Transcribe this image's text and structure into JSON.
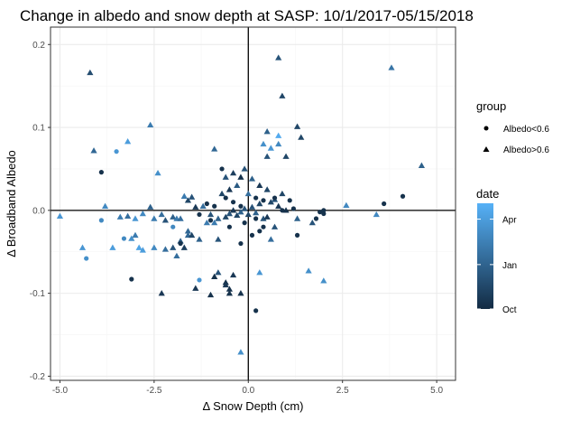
{
  "chart_data": {
    "type": "scatter",
    "title": "Change in albedo and snow depth at SASP: 10/1/2017-05/15/2018",
    "xlabel": "Δ Snow Depth (cm)",
    "ylabel": "Δ Broadband Albedo",
    "xlim": [
      -5.25,
      5.5
    ],
    "ylim": [
      -0.205,
      0.221
    ],
    "x_ticks": [
      -5.0,
      -2.5,
      0.0,
      2.5,
      5.0
    ],
    "x_tick_labels": [
      "-5.0",
      "-2.5",
      "0.0",
      "2.5",
      "5.0"
    ],
    "x_minor_ticks": [
      -3.75,
      -1.25,
      1.25,
      3.75
    ],
    "y_ticks": [
      -0.2,
      -0.1,
      0.0,
      0.1,
      0.2
    ],
    "y_tick_labels": [
      "-0.2",
      "-0.1",
      "0.0",
      "0.1",
      "0.2"
    ],
    "y_minor_ticks": [
      -0.15,
      -0.05,
      0.05,
      0.15
    ],
    "reference_lines": {
      "x": 0,
      "y": 0
    },
    "grid": true,
    "legend_placement": "right",
    "shape_legend": {
      "title": "group",
      "entries": [
        {
          "label": "Albedo<0.6",
          "shape": "circle"
        },
        {
          "label": "Albedo>0.6",
          "shape": "triangle"
        }
      ]
    },
    "color_legend": {
      "title": "date",
      "labels": [
        "Apr",
        "Jan",
        "Oct"
      ],
      "positions": [
        0.85,
        0.42,
        0.0
      ],
      "low_color": "#132B43",
      "high_color": "#56B1F7"
    },
    "points": [
      {
        "x": -4.2,
        "y": 0.166,
        "g": "triangle",
        "d": 0.25
      },
      {
        "x": -4.1,
        "y": 0.072,
        "g": "triangle",
        "d": 0.45
      },
      {
        "x": -3.9,
        "y": 0.046,
        "g": "circle",
        "d": 0.05
      },
      {
        "x": -3.5,
        "y": 0.071,
        "g": "circle",
        "d": 0.8
      },
      {
        "x": -3.2,
        "y": 0.083,
        "g": "triangle",
        "d": 0.85
      },
      {
        "x": -2.6,
        "y": 0.103,
        "g": "triangle",
        "d": 0.6
      },
      {
        "x": -2.4,
        "y": 0.045,
        "g": "triangle",
        "d": 0.75
      },
      {
        "x": 0.8,
        "y": 0.184,
        "g": "triangle",
        "d": 0.3
      },
      {
        "x": 3.8,
        "y": 0.172,
        "g": "triangle",
        "d": 0.55
      },
      {
        "x": 0.9,
        "y": 0.138,
        "g": "triangle",
        "d": 0.2
      },
      {
        "x": 1.3,
        "y": 0.101,
        "g": "triangle",
        "d": 0.2
      },
      {
        "x": 1.4,
        "y": 0.088,
        "g": "triangle",
        "d": 0.2
      },
      {
        "x": 0.5,
        "y": 0.095,
        "g": "triangle",
        "d": 0.4
      },
      {
        "x": 0.8,
        "y": 0.09,
        "g": "triangle",
        "d": 0.95
      },
      {
        "x": 0.4,
        "y": 0.08,
        "g": "triangle",
        "d": 0.75
      },
      {
        "x": 0.6,
        "y": 0.075,
        "g": "triangle",
        "d": 0.8
      },
      {
        "x": 0.8,
        "y": 0.08,
        "g": "triangle",
        "d": 0.7
      },
      {
        "x": -0.9,
        "y": 0.074,
        "g": "triangle",
        "d": 0.45
      },
      {
        "x": 0.5,
        "y": 0.065,
        "g": "triangle",
        "d": 0.3
      },
      {
        "x": 1.0,
        "y": 0.065,
        "g": "triangle",
        "d": 0.2
      },
      {
        "x": 4.6,
        "y": 0.054,
        "g": "triangle",
        "d": 0.4
      },
      {
        "x": 4.1,
        "y": 0.017,
        "g": "circle",
        "d": 0.05
      },
      {
        "x": 3.6,
        "y": 0.008,
        "g": "circle",
        "d": 0.05
      },
      {
        "x": 2.6,
        "y": 0.006,
        "g": "triangle",
        "d": 0.7
      },
      {
        "x": 3.4,
        "y": -0.005,
        "g": "triangle",
        "d": 0.7
      },
      {
        "x": 2.0,
        "y": -0.004,
        "g": "circle",
        "d": 0.05
      },
      {
        "x": 1.9,
        "y": -0.002,
        "g": "circle",
        "d": 0.05
      },
      {
        "x": 1.2,
        "y": 0.002,
        "g": "circle",
        "d": 0.05
      },
      {
        "x": 1.3,
        "y": -0.01,
        "g": "triangle",
        "d": 0.4
      },
      {
        "x": 1.8,
        "y": -0.01,
        "g": "circle",
        "d": 0.05
      },
      {
        "x": 1.7,
        "y": -0.015,
        "g": "triangle",
        "d": 0.3
      },
      {
        "x": 1.3,
        "y": -0.03,
        "g": "circle",
        "d": 0.05
      },
      {
        "x": 0.7,
        "y": -0.02,
        "g": "triangle",
        "d": 0.3
      },
      {
        "x": 0.6,
        "y": -0.035,
        "g": "triangle",
        "d": 0.5
      },
      {
        "x": 2.0,
        "y": -0.085,
        "g": "triangle",
        "d": 0.75
      },
      {
        "x": 1.6,
        "y": -0.073,
        "g": "triangle",
        "d": 0.75
      },
      {
        "x": 0.2,
        "y": -0.121,
        "g": "circle",
        "d": 0.05
      },
      {
        "x": -0.2,
        "y": -0.1,
        "g": "triangle",
        "d": 0.05
      },
      {
        "x": -0.4,
        "y": -0.078,
        "g": "triangle",
        "d": 0.1
      },
      {
        "x": -0.8,
        "y": -0.075,
        "g": "triangle",
        "d": 0.3
      },
      {
        "x": -0.9,
        "y": -0.08,
        "g": "triangle",
        "d": 0.05
      },
      {
        "x": -1.0,
        "y": -0.102,
        "g": "triangle",
        "d": 0.05
      },
      {
        "x": -1.4,
        "y": -0.094,
        "g": "triangle",
        "d": 0.1
      },
      {
        "x": -2.3,
        "y": -0.1,
        "g": "triangle",
        "d": 0.1
      },
      {
        "x": -1.3,
        "y": -0.084,
        "g": "circle",
        "d": 0.8
      },
      {
        "x": -3.1,
        "y": -0.083,
        "g": "circle",
        "d": 0.05
      },
      {
        "x": 0.3,
        "y": -0.075,
        "g": "triangle",
        "d": 0.8
      },
      {
        "x": -0.6,
        "y": -0.087,
        "g": "triangle",
        "d": 0.05
      },
      {
        "x": -0.5,
        "y": -0.1,
        "g": "triangle",
        "d": 0.05
      },
      {
        "x": -0.2,
        "y": -0.171,
        "g": "triangle",
        "d": 0.75
      },
      {
        "x": -4.4,
        "y": -0.045,
        "g": "triangle",
        "d": 0.8
      },
      {
        "x": -4.3,
        "y": -0.058,
        "g": "circle",
        "d": 0.75
      },
      {
        "x": -5.0,
        "y": -0.007,
        "g": "triangle",
        "d": 0.8
      },
      {
        "x": -3.6,
        "y": -0.045,
        "g": "triangle",
        "d": 0.85
      },
      {
        "x": -3.3,
        "y": -0.034,
        "g": "circle",
        "d": 0.7
      },
      {
        "x": -3.1,
        "y": -0.034,
        "g": "triangle",
        "d": 0.75
      },
      {
        "x": -3.0,
        "y": -0.03,
        "g": "triangle",
        "d": 0.6
      },
      {
        "x": -2.9,
        "y": -0.045,
        "g": "triangle",
        "d": 0.9
      },
      {
        "x": -2.8,
        "y": -0.048,
        "g": "triangle",
        "d": 0.85
      },
      {
        "x": -2.5,
        "y": -0.045,
        "g": "triangle",
        "d": 0.7
      },
      {
        "x": -2.2,
        "y": -0.047,
        "g": "triangle",
        "d": 0.5
      },
      {
        "x": -2.0,
        "y": -0.045,
        "g": "triangle",
        "d": 0.3
      },
      {
        "x": -1.9,
        "y": -0.055,
        "g": "triangle",
        "d": 0.5
      },
      {
        "x": -1.7,
        "y": -0.045,
        "g": "triangle",
        "d": 0.15
      },
      {
        "x": -1.8,
        "y": -0.037,
        "g": "triangle",
        "d": 0.35
      },
      {
        "x": -1.6,
        "y": -0.03,
        "g": "triangle",
        "d": 0.45
      },
      {
        "x": -1.5,
        "y": -0.03,
        "g": "triangle",
        "d": 0.2
      },
      {
        "x": -1.3,
        "y": -0.035,
        "g": "triangle",
        "d": 0.4
      },
      {
        "x": -0.8,
        "y": -0.035,
        "g": "triangle",
        "d": 0.3
      },
      {
        "x": -3.9,
        "y": -0.012,
        "g": "circle",
        "d": 0.7
      },
      {
        "x": -3.8,
        "y": 0.005,
        "g": "triangle",
        "d": 0.7
      },
      {
        "x": -3.4,
        "y": -0.008,
        "g": "triangle",
        "d": 0.6
      },
      {
        "x": -3.2,
        "y": -0.007,
        "g": "triangle",
        "d": 0.5
      },
      {
        "x": -3.0,
        "y": -0.01,
        "g": "triangle",
        "d": 0.8
      },
      {
        "x": -2.8,
        "y": -0.004,
        "g": "triangle",
        "d": 0.7
      },
      {
        "x": -2.6,
        "y": 0.004,
        "g": "triangle",
        "d": 0.4
      },
      {
        "x": -2.5,
        "y": -0.01,
        "g": "triangle",
        "d": 0.6
      },
      {
        "x": -2.3,
        "y": -0.005,
        "g": "triangle",
        "d": 0.5
      },
      {
        "x": -2.2,
        "y": -0.012,
        "g": "triangle",
        "d": 0.3
      },
      {
        "x": -2.0,
        "y": -0.008,
        "g": "triangle",
        "d": 0.4
      },
      {
        "x": -1.9,
        "y": -0.01,
        "g": "triangle",
        "d": 0.6
      },
      {
        "x": -1.8,
        "y": -0.01,
        "g": "triangle",
        "d": 0.5
      },
      {
        "x": -1.7,
        "y": 0.017,
        "g": "triangle",
        "d": 0.6
      },
      {
        "x": -1.5,
        "y": 0.016,
        "g": "triangle",
        "d": 0.3
      },
      {
        "x": -1.6,
        "y": 0.012,
        "g": "triangle",
        "d": 0.2
      },
      {
        "x": -1.4,
        "y": 0.004,
        "g": "triangle",
        "d": 0.1
      },
      {
        "x": -1.2,
        "y": 0.005,
        "g": "triangle",
        "d": 0.5
      },
      {
        "x": -1.1,
        "y": -0.015,
        "g": "triangle",
        "d": 0.6
      },
      {
        "x": -1.0,
        "y": -0.005,
        "g": "triangle",
        "d": 0.3
      },
      {
        "x": -0.9,
        "y": -0.015,
        "g": "triangle",
        "d": 0.6
      },
      {
        "x": -0.8,
        "y": -0.01,
        "g": "triangle",
        "d": 0.4
      },
      {
        "x": -0.6,
        "y": -0.008,
        "g": "triangle",
        "d": 0.2
      },
      {
        "x": -0.5,
        "y": -0.004,
        "g": "triangle",
        "d": 0.3
      },
      {
        "x": -0.4,
        "y": 0.0,
        "g": "triangle",
        "d": 0.1
      },
      {
        "x": -0.3,
        "y": -0.006,
        "g": "triangle",
        "d": 0.2
      },
      {
        "x": -0.2,
        "y": -0.002,
        "g": "triangle",
        "d": 0.4
      },
      {
        "x": -0.1,
        "y": 0.002,
        "g": "triangle",
        "d": 0.3
      },
      {
        "x": 0.0,
        "y": -0.005,
        "g": "triangle",
        "d": 0.2
      },
      {
        "x": 0.1,
        "y": 0.004,
        "g": "triangle",
        "d": 0.3
      },
      {
        "x": 0.2,
        "y": -0.003,
        "g": "triangle",
        "d": 0.4
      },
      {
        "x": 0.3,
        "y": 0.008,
        "g": "triangle",
        "d": 0.2
      },
      {
        "x": 0.4,
        "y": -0.01,
        "g": "triangle",
        "d": 0.3
      },
      {
        "x": 0.5,
        "y": -0.008,
        "g": "triangle",
        "d": 0.1
      },
      {
        "x": 0.6,
        "y": 0.01,
        "g": "triangle",
        "d": 0.2
      },
      {
        "x": 0.7,
        "y": 0.013,
        "g": "triangle",
        "d": 0.3
      },
      {
        "x": 0.8,
        "y": 0.005,
        "g": "triangle",
        "d": 0.1
      },
      {
        "x": 0.9,
        "y": 0.02,
        "g": "triangle",
        "d": 0.2
      },
      {
        "x": 1.0,
        "y": 0.0,
        "g": "triangle",
        "d": 0.05
      },
      {
        "x": 0.5,
        "y": 0.025,
        "g": "triangle",
        "d": 0.2
      },
      {
        "x": 0.3,
        "y": 0.03,
        "g": "triangle",
        "d": 0.1
      },
      {
        "x": 0.1,
        "y": 0.038,
        "g": "triangle",
        "d": 0.4
      },
      {
        "x": -0.1,
        "y": 0.05,
        "g": "triangle",
        "d": 0.3
      },
      {
        "x": -0.3,
        "y": 0.03,
        "g": "triangle",
        "d": 0.35
      },
      {
        "x": -0.5,
        "y": 0.025,
        "g": "triangle",
        "d": 0.1
      },
      {
        "x": -0.7,
        "y": 0.02,
        "g": "triangle",
        "d": 0.2
      },
      {
        "x": -0.6,
        "y": 0.04,
        "g": "triangle",
        "d": 0.3
      },
      {
        "x": -0.4,
        "y": 0.045,
        "g": "triangle",
        "d": 0.15
      },
      {
        "x": -0.7,
        "y": 0.05,
        "g": "circle",
        "d": 0.05
      },
      {
        "x": -0.9,
        "y": 0.005,
        "g": "circle",
        "d": 0.05
      },
      {
        "x": -0.6,
        "y": 0.015,
        "g": "circle",
        "d": 0.05
      },
      {
        "x": -0.4,
        "y": 0.01,
        "g": "circle",
        "d": 0.05
      },
      {
        "x": -0.2,
        "y": 0.005,
        "g": "circle",
        "d": 0.05
      },
      {
        "x": 0.2,
        "y": 0.015,
        "g": "circle",
        "d": 0.05
      },
      {
        "x": 0.4,
        "y": 0.012,
        "g": "circle",
        "d": 0.05
      },
      {
        "x": 0.7,
        "y": 0.015,
        "g": "circle",
        "d": 0.05
      },
      {
        "x": 0.9,
        "y": 0.0,
        "g": "circle",
        "d": 0.05
      },
      {
        "x": 1.1,
        "y": 0.012,
        "g": "circle",
        "d": 0.05
      },
      {
        "x": -1.1,
        "y": 0.008,
        "g": "circle",
        "d": 0.05
      },
      {
        "x": -1.3,
        "y": -0.005,
        "g": "circle",
        "d": 0.05
      },
      {
        "x": -1.8,
        "y": -0.04,
        "g": "circle",
        "d": 0.05
      },
      {
        "x": -1.0,
        "y": -0.012,
        "g": "circle",
        "d": 0.05
      },
      {
        "x": -0.5,
        "y": -0.02,
        "g": "circle",
        "d": 0.05
      },
      {
        "x": -0.1,
        "y": -0.015,
        "g": "circle",
        "d": 0.05
      },
      {
        "x": 0.2,
        "y": -0.01,
        "g": "circle",
        "d": 0.05
      },
      {
        "x": 0.4,
        "y": -0.02,
        "g": "circle",
        "d": 0.05
      },
      {
        "x": -0.2,
        "y": -0.04,
        "g": "circle",
        "d": 0.05
      },
      {
        "x": 0.1,
        "y": -0.03,
        "g": "circle",
        "d": 0.05
      },
      {
        "x": 0.3,
        "y": -0.025,
        "g": "circle",
        "d": 0.05
      },
      {
        "x": -2.0,
        "y": -0.02,
        "g": "circle",
        "d": 0.7
      },
      {
        "x": -1.6,
        "y": -0.025,
        "g": "triangle",
        "d": 0.45
      },
      {
        "x": -0.5,
        "y": -0.095,
        "g": "triangle",
        "d": 0.05
      },
      {
        "x": -0.6,
        "y": -0.09,
        "g": "triangle",
        "d": 0.1
      },
      {
        "x": 2.0,
        "y": 0.0,
        "g": "circle",
        "d": 0.05
      },
      {
        "x": -0.2,
        "y": 0.04,
        "g": "triangle",
        "d": 0.05
      },
      {
        "x": 0.0,
        "y": 0.02,
        "g": "triangle",
        "d": 0.5
      }
    ]
  }
}
